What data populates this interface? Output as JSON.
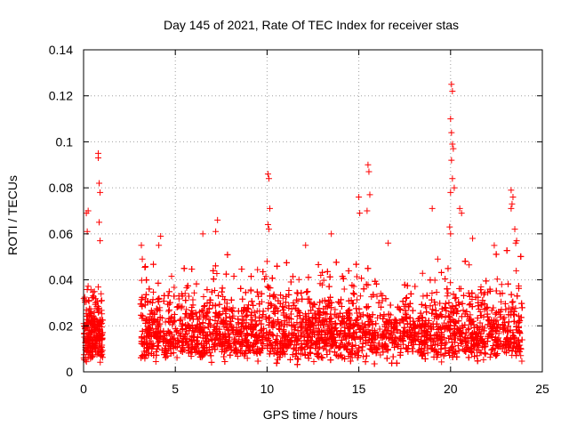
{
  "chart_data": {
    "type": "scatter",
    "title": "Day 145 of 2021, Rate Of TEC Index for receiver stas",
    "xlabel": "GPS time / hours",
    "ylabel": "ROTI / TECUs",
    "xlim": [
      0,
      25
    ],
    "ylim": [
      0,
      0.14
    ],
    "x_ticks": [
      0,
      5,
      10,
      15,
      20,
      25
    ],
    "x_tick_labels": [
      "0",
      "5",
      "10",
      "15",
      "20",
      "25"
    ],
    "y_ticks": [
      0,
      0.02,
      0.04,
      0.06,
      0.08,
      0.1,
      0.12,
      0.14
    ],
    "y_tick_labels": [
      "0",
      "0.02",
      "0.04",
      "0.06",
      "0.08",
      "0.1",
      "0.12",
      "0.14"
    ],
    "grid": true,
    "marker": "+",
    "color": "#ff0000",
    "series": [
      {
        "name": "stas",
        "segments": [
          {
            "x_range": [
              0.0,
              1.05
            ],
            "y_base_range": [
              0.003,
              0.035
            ]
          },
          {
            "x_range": [
              3.1,
              23.9
            ],
            "y_base_range": [
              0.003,
              0.04
            ]
          }
        ],
        "notable_points": [
          {
            "x": 0.15,
            "y": 0.069
          },
          {
            "x": 0.2,
            "y": 0.061
          },
          {
            "x": 0.25,
            "y": 0.07
          },
          {
            "x": 0.8,
            "y": 0.095
          },
          {
            "x": 0.8,
            "y": 0.093
          },
          {
            "x": 0.85,
            "y": 0.082
          },
          {
            "x": 0.9,
            "y": 0.078
          },
          {
            "x": 0.85,
            "y": 0.065
          },
          {
            "x": 0.9,
            "y": 0.057
          },
          {
            "x": 3.15,
            "y": 0.055
          },
          {
            "x": 3.2,
            "y": 0.049
          },
          {
            "x": 4.1,
            "y": 0.055
          },
          {
            "x": 4.2,
            "y": 0.059
          },
          {
            "x": 7.3,
            "y": 0.066
          },
          {
            "x": 7.2,
            "y": 0.061
          },
          {
            "x": 6.5,
            "y": 0.06
          },
          {
            "x": 10.05,
            "y": 0.086
          },
          {
            "x": 10.1,
            "y": 0.084
          },
          {
            "x": 10.15,
            "y": 0.071
          },
          {
            "x": 10.05,
            "y": 0.064
          },
          {
            "x": 10.1,
            "y": 0.062
          },
          {
            "x": 10.0,
            "y": 0.048
          },
          {
            "x": 12.1,
            "y": 0.055
          },
          {
            "x": 13.5,
            "y": 0.06
          },
          {
            "x": 15.0,
            "y": 0.076
          },
          {
            "x": 15.05,
            "y": 0.069
          },
          {
            "x": 15.5,
            "y": 0.09
          },
          {
            "x": 15.55,
            "y": 0.087
          },
          {
            "x": 15.6,
            "y": 0.077
          },
          {
            "x": 15.45,
            "y": 0.07
          },
          {
            "x": 16.6,
            "y": 0.056
          },
          {
            "x": 19.0,
            "y": 0.071
          },
          {
            "x": 19.3,
            "y": 0.049
          },
          {
            "x": 20.05,
            "y": 0.125
          },
          {
            "x": 20.1,
            "y": 0.122
          },
          {
            "x": 20.0,
            "y": 0.11
          },
          {
            "x": 20.05,
            "y": 0.104
          },
          {
            "x": 20.1,
            "y": 0.099
          },
          {
            "x": 20.15,
            "y": 0.097
          },
          {
            "x": 20.05,
            "y": 0.092
          },
          {
            "x": 20.1,
            "y": 0.084
          },
          {
            "x": 20.0,
            "y": 0.078
          },
          {
            "x": 20.2,
            "y": 0.08
          },
          {
            "x": 20.5,
            "y": 0.071
          },
          {
            "x": 20.6,
            "y": 0.069
          },
          {
            "x": 19.95,
            "y": 0.063
          },
          {
            "x": 20.0,
            "y": 0.06
          },
          {
            "x": 21.2,
            "y": 0.058
          },
          {
            "x": 23.3,
            "y": 0.079
          },
          {
            "x": 23.4,
            "y": 0.076
          },
          {
            "x": 23.35,
            "y": 0.073
          },
          {
            "x": 23.3,
            "y": 0.071
          },
          {
            "x": 23.5,
            "y": 0.062
          },
          {
            "x": 23.6,
            "y": 0.057
          },
          {
            "x": 23.55,
            "y": 0.056
          }
        ]
      }
    ]
  }
}
